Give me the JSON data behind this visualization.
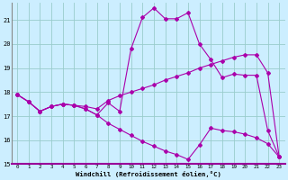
{
  "xlabel": "Windchill (Refroidissement éolien,°C)",
  "bg_color": "#cceeff",
  "line_color": "#aa00aa",
  "grid_color": "#99cccc",
  "xlim": [
    -0.5,
    23.5
  ],
  "ylim": [
    15.0,
    21.7
  ],
  "xticks": [
    0,
    1,
    2,
    3,
    4,
    5,
    6,
    7,
    8,
    9,
    10,
    11,
    12,
    13,
    14,
    15,
    16,
    17,
    18,
    19,
    20,
    21,
    22,
    23
  ],
  "yticks": [
    15,
    16,
    17,
    18,
    19,
    20,
    21
  ],
  "curve1_x": [
    0,
    1,
    2,
    3,
    4,
    5,
    6,
    7,
    8,
    9,
    10,
    11,
    12,
    13,
    14,
    15,
    16,
    17,
    18,
    19,
    20,
    21,
    22,
    23
  ],
  "curve1_y": [
    17.9,
    17.6,
    17.2,
    17.4,
    17.5,
    17.45,
    17.3,
    17.05,
    17.55,
    17.2,
    19.8,
    21.1,
    21.5,
    21.05,
    21.05,
    21.3,
    20.0,
    19.35,
    18.6,
    18.75,
    18.7,
    18.7,
    16.4,
    15.3
  ],
  "curve2_x": [
    0,
    1,
    2,
    3,
    4,
    5,
    6,
    7,
    8,
    9,
    10,
    11,
    12,
    13,
    14,
    15,
    16,
    17,
    18,
    19,
    20,
    21,
    22,
    23
  ],
  "curve2_y": [
    17.9,
    17.6,
    17.2,
    17.4,
    17.5,
    17.45,
    17.4,
    17.3,
    17.65,
    17.85,
    18.0,
    18.15,
    18.3,
    18.5,
    18.65,
    18.8,
    19.0,
    19.15,
    19.3,
    19.45,
    19.55,
    19.55,
    18.8,
    15.3
  ],
  "curve3_x": [
    0,
    1,
    2,
    3,
    4,
    5,
    6,
    7,
    8,
    9,
    10,
    11,
    12,
    13,
    14,
    15,
    16,
    17,
    18,
    19,
    20,
    21,
    22,
    23
  ],
  "curve3_y": [
    17.9,
    17.6,
    17.2,
    17.4,
    17.5,
    17.45,
    17.3,
    17.05,
    16.7,
    16.45,
    16.2,
    15.95,
    15.75,
    15.55,
    15.4,
    15.2,
    15.8,
    16.5,
    16.4,
    16.35,
    16.25,
    16.1,
    15.85,
    15.3
  ]
}
